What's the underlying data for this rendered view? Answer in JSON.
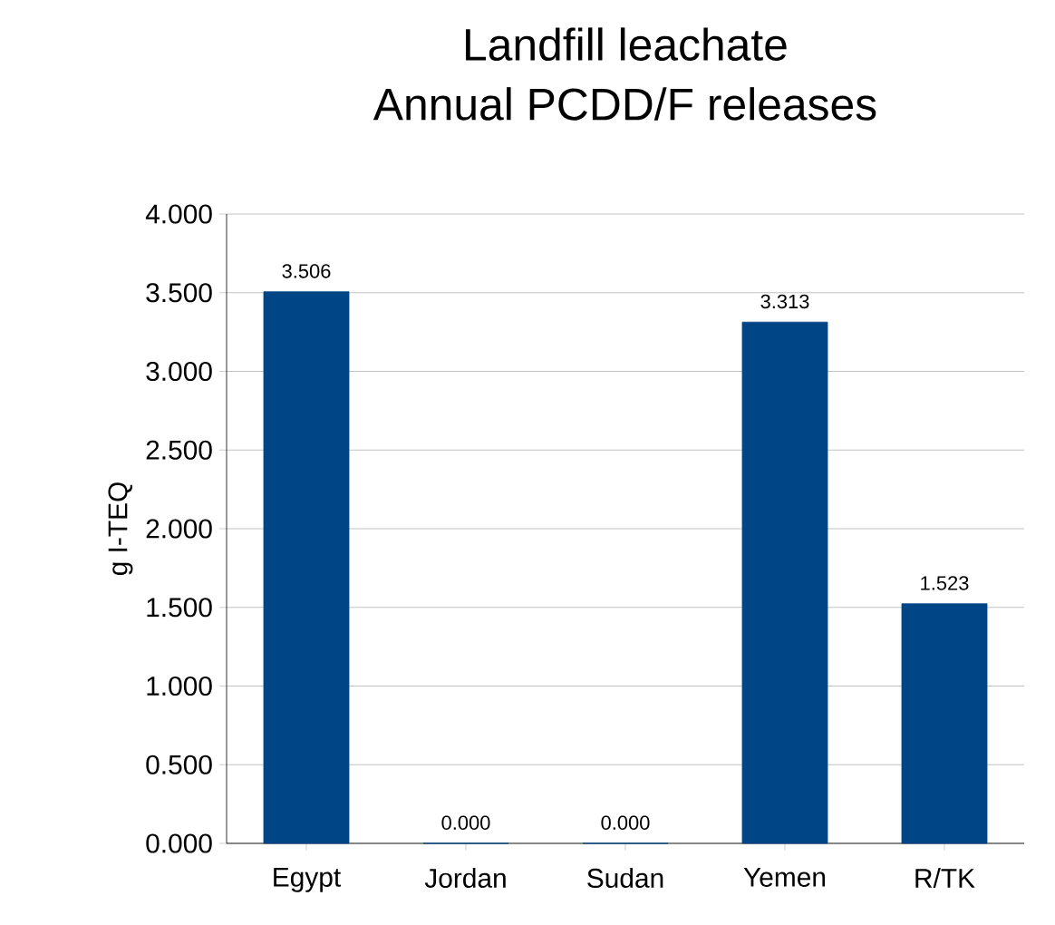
{
  "chart_data": {
    "type": "bar",
    "title": "Landfill leachate\nAnnual PCDD/F releases",
    "ylabel": "g I-TEQ",
    "categories": [
      "Egypt",
      "Jordan",
      "Sudan",
      "Yemen",
      "R/TK"
    ],
    "values": [
      3.506,
      0,
      0,
      3.313,
      1.523
    ],
    "value_labels": [
      "3.506",
      "0.000",
      "0.000",
      "3.313",
      "1.523"
    ],
    "color": "#004586",
    "ylim": [
      0,
      4
    ],
    "yticks": [
      {
        "value": 0,
        "label": "0.000"
      },
      {
        "value": 0.5,
        "label": "0.500"
      },
      {
        "value": 1,
        "label": "1.000"
      },
      {
        "value": 1.5,
        "label": "1.500"
      },
      {
        "value": 2,
        "label": "2.000"
      },
      {
        "value": 2.5,
        "label": "2.500"
      },
      {
        "value": 3,
        "label": "3.000"
      },
      {
        "value": 3.5,
        "label": "3.500"
      },
      {
        "value": 4,
        "label": "4.000"
      }
    ],
    "grid": "y"
  }
}
